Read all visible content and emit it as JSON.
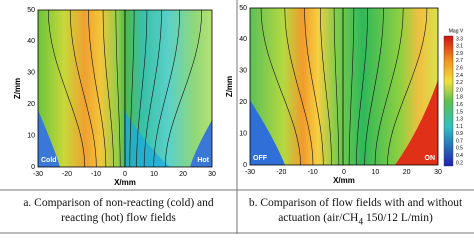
{
  "panels": [
    {
      "y_label": "Z/mm",
      "x_label": "X/mm",
      "y_ticks": [
        "0",
        "10",
        "20",
        "30",
        "40",
        "50"
      ],
      "x_ticks": [
        "-30",
        "-20",
        "-10",
        "0",
        "10",
        "20",
        "30"
      ],
      "left_tag": "Cold",
      "right_tag": "Hot",
      "caption": "a. Comparison of non-reacting (cold) and reacting (hot) flow fields"
    },
    {
      "y_label": "Z/mm",
      "x_label": "X/mm",
      "y_ticks": [
        "0",
        "10",
        "20",
        "30",
        "40",
        "50"
      ],
      "x_ticks": [
        "-30",
        "-20",
        "-10",
        "0",
        "10",
        "20",
        "30"
      ],
      "left_tag": "OFF",
      "right_tag": "ON",
      "colorbar_title": "Mag V",
      "colorbar_ticks": [
        "3.3",
        "3.1",
        "2.9",
        "2.7",
        "2.6",
        "2.4",
        "2.2",
        "2.0",
        "1.8",
        "1.6",
        "1.5",
        "1.3",
        "1.1",
        "0.9",
        "0.7",
        "0.5",
        "0.4",
        "0.2"
      ],
      "caption_pre": "b. Comparison of flow fields with and without actuation (air/CH",
      "caption_sub": "4",
      "caption_post": " 150/12 L/min)"
    }
  ]
}
